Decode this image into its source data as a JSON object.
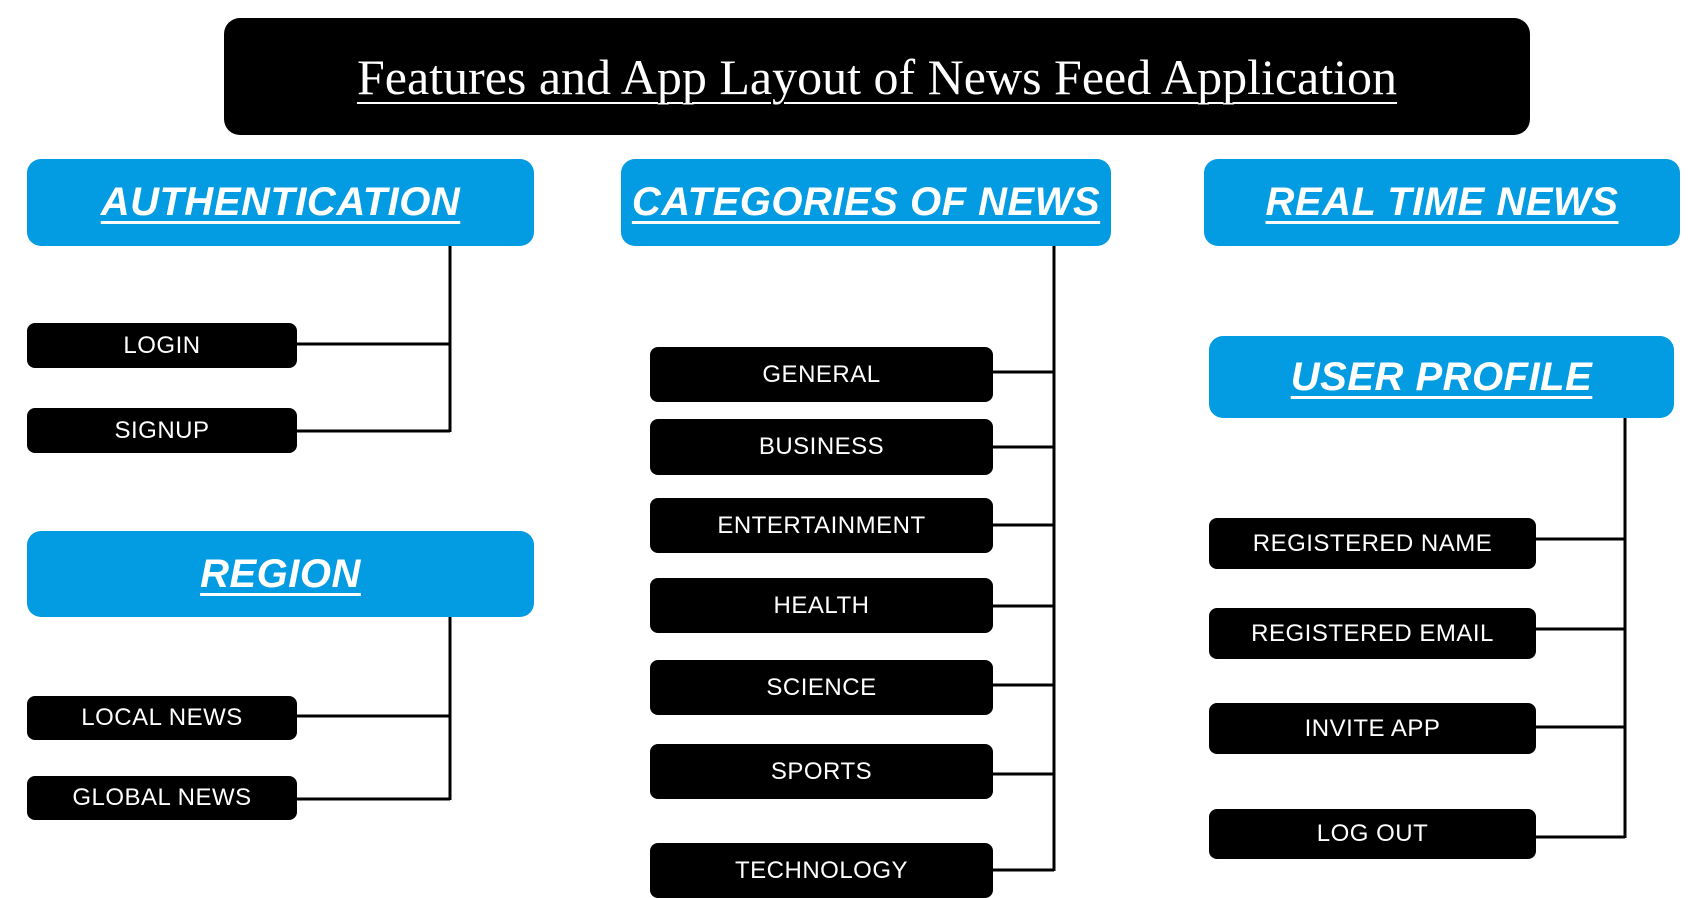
{
  "title": "Features and App Layout of News Feed Application",
  "colors": {
    "header": "#039be1",
    "item": "#000000",
    "connector": "#000000"
  },
  "sections": {
    "authentication": {
      "label": "AUTHENTICATION",
      "items": [
        "LOGIN",
        "SIGNUP"
      ]
    },
    "region": {
      "label": "REGION",
      "items": [
        "LOCAL NEWS",
        "GLOBAL NEWS"
      ]
    },
    "categories": {
      "label": "CATEGORIES OF NEWS",
      "items": [
        "GENERAL",
        "BUSINESS",
        "ENTERTAINMENT",
        "HEALTH",
        "SCIENCE",
        "SPORTS",
        "TECHNOLOGY"
      ]
    },
    "realtime": {
      "label": "REAL TIME NEWS",
      "items": []
    },
    "profile": {
      "label": "USER PROFILE",
      "items": [
        "REGISTERED NAME",
        "REGISTERED EMAIL",
        "INVITE APP",
        "LOG OUT"
      ]
    }
  }
}
